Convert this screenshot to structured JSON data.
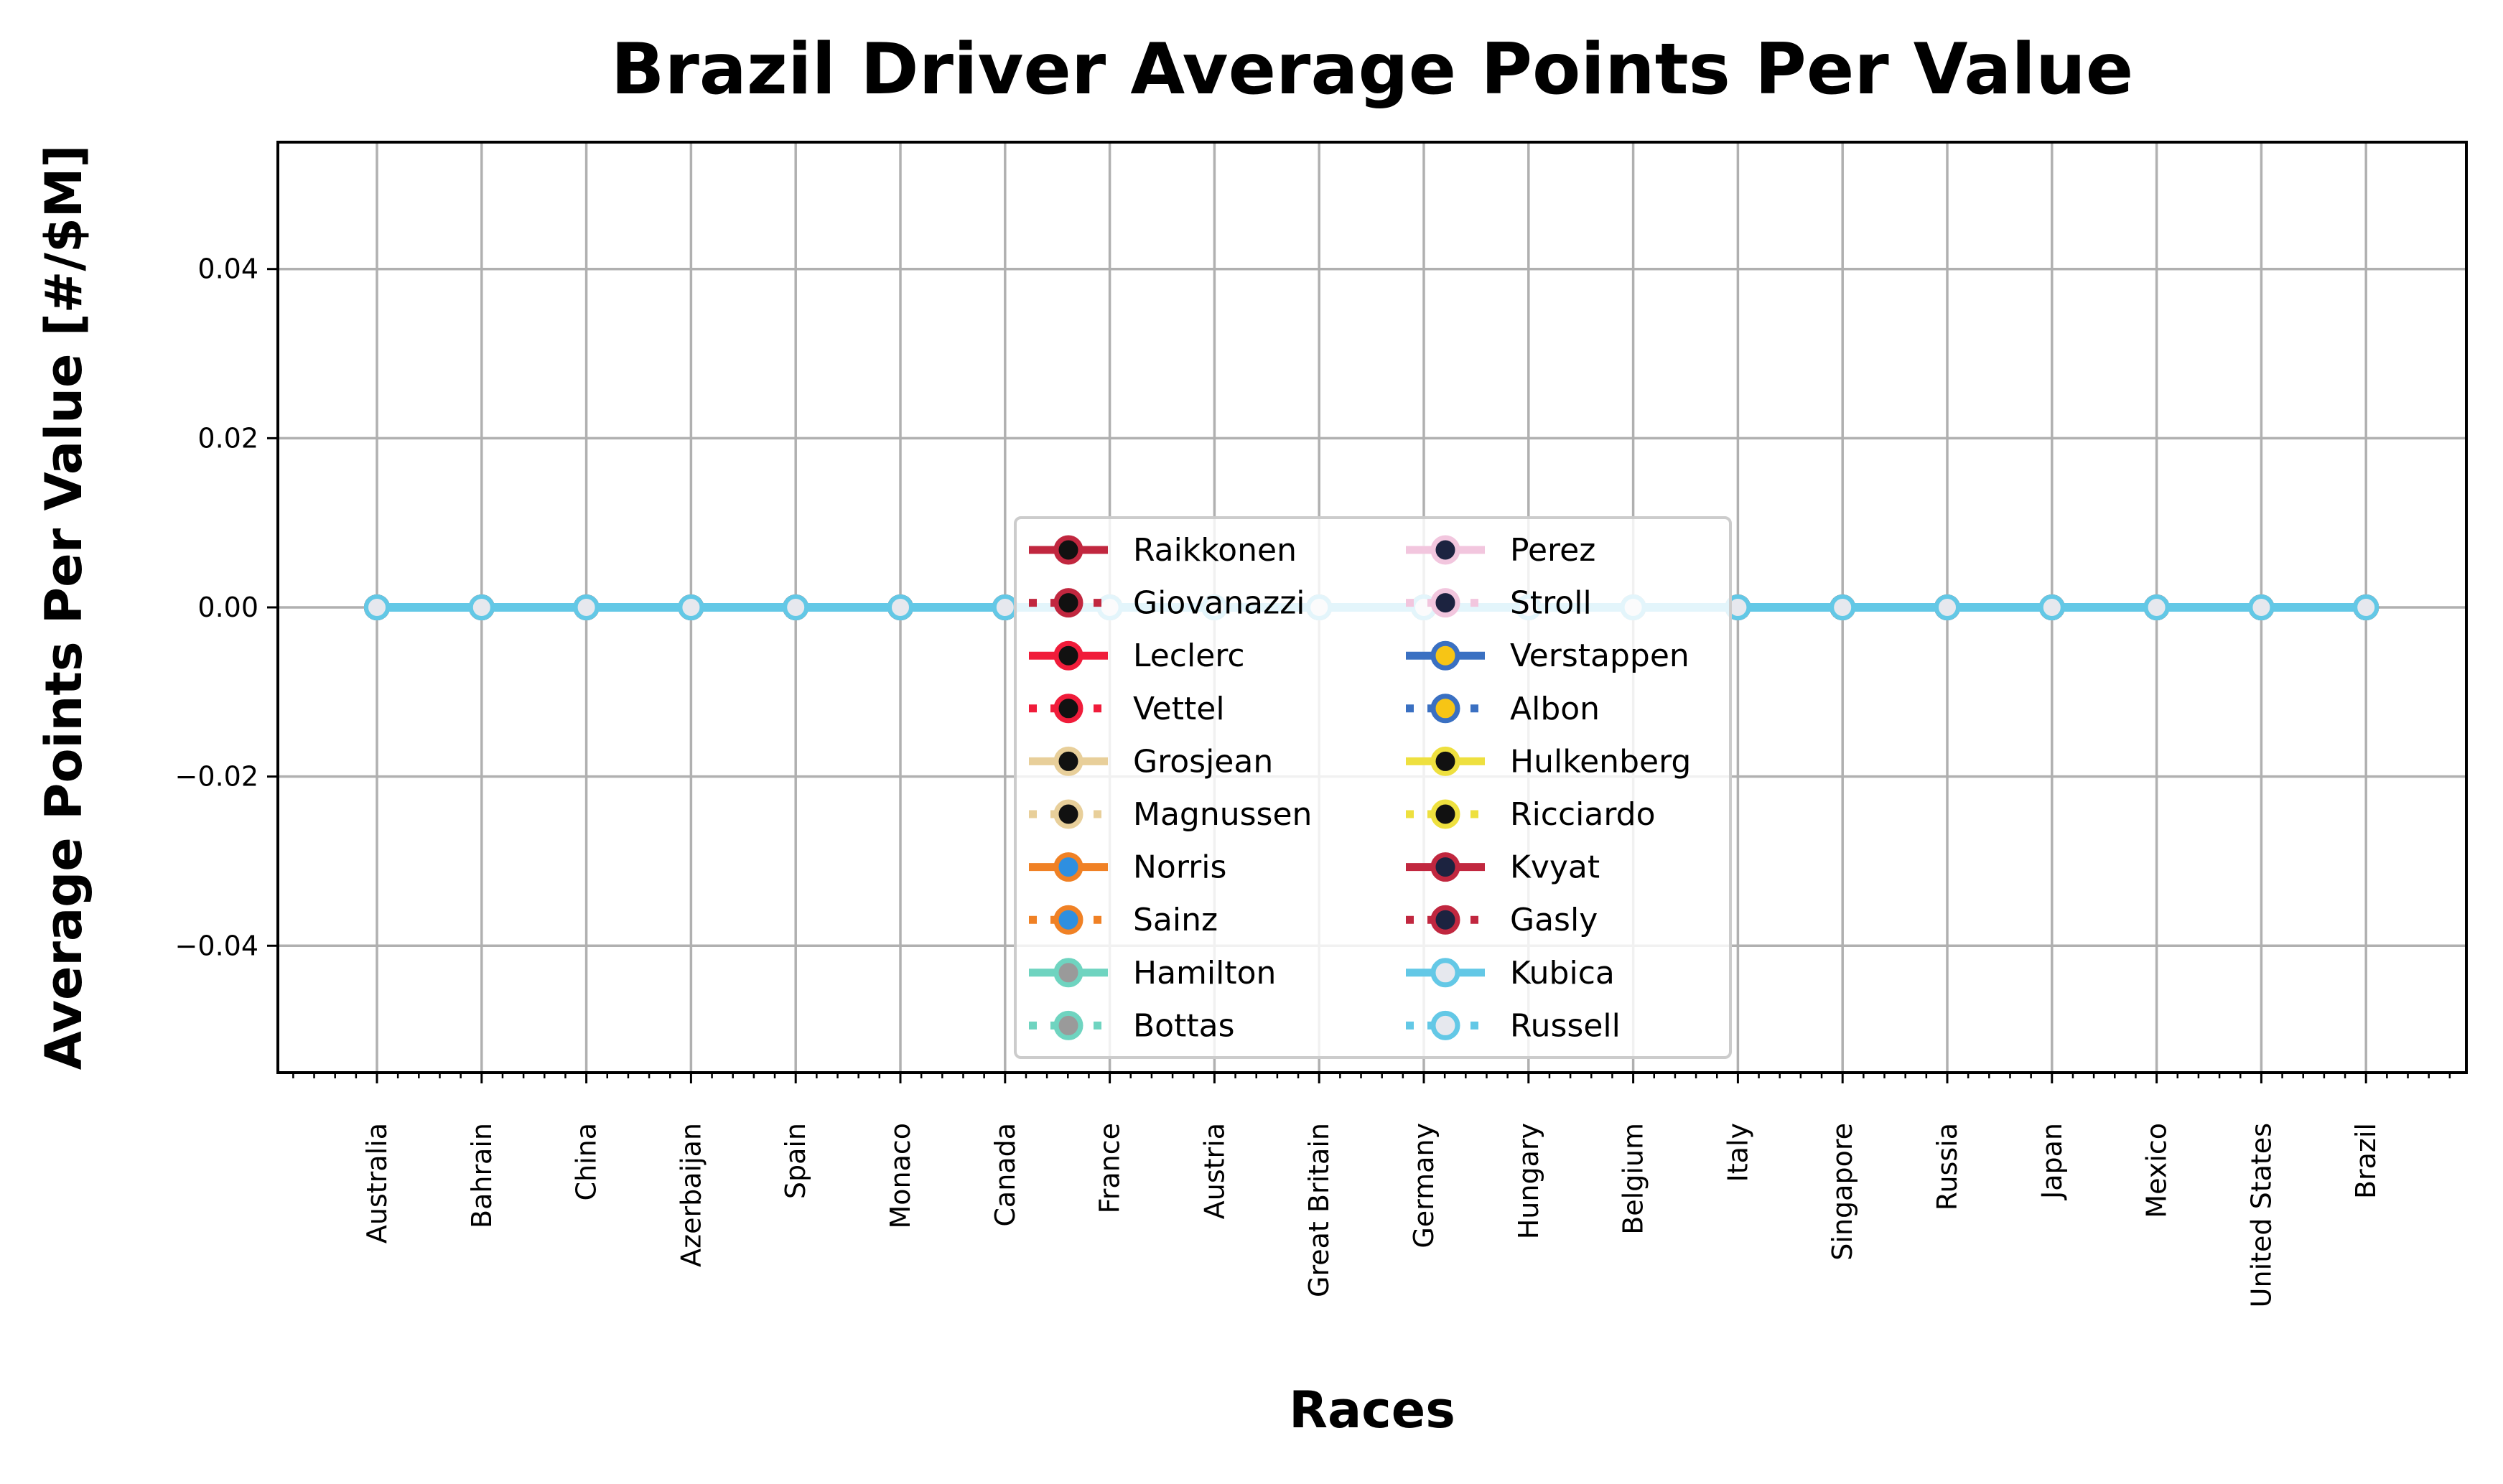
{
  "chart_data": {
    "type": "line",
    "title": "Brazil Driver Average Points Per Value",
    "xlabel": "Races",
    "ylabel": "Average Points Per Value [#/$M]",
    "categories": [
      "Australia",
      "Bahrain",
      "China",
      "Azerbaijan",
      "Spain",
      "Monaco",
      "Canada",
      "France",
      "Austria",
      "Great Britain",
      "Germany",
      "Hungary",
      "Belgium",
      "Italy",
      "Singapore",
      "Russia",
      "Japan",
      "Mexico",
      "United States",
      "Brazil"
    ],
    "ylim": [
      -0.055,
      0.055
    ],
    "yticks": [
      -0.04,
      -0.02,
      0.0,
      0.02,
      0.04
    ],
    "ytick_labels": [
      "−0.04",
      "−0.02",
      "0.00",
      "0.02",
      "0.04"
    ],
    "grid": true,
    "legend_placement": "center",
    "legend_columns": 2,
    "series": [
      {
        "name": "Raikkonen",
        "style": "solid",
        "line_color": "#c1273f",
        "face_color": "#111111",
        "values": [
          0,
          0,
          0,
          0,
          0,
          0,
          0,
          0,
          0,
          0,
          0,
          0,
          0,
          0,
          0,
          0,
          0,
          0,
          0,
          0
        ]
      },
      {
        "name": "Giovanazzi",
        "style": "dotted",
        "line_color": "#c1273f",
        "face_color": "#111111",
        "values": [
          0,
          0,
          0,
          0,
          0,
          0,
          0,
          0,
          0,
          0,
          0,
          0,
          0,
          0,
          0,
          0,
          0,
          0,
          0,
          0
        ]
      },
      {
        "name": "Leclerc",
        "style": "solid",
        "line_color": "#f01c3a",
        "face_color": "#111111",
        "values": [
          0,
          0,
          0,
          0,
          0,
          0,
          0,
          0,
          0,
          0,
          0,
          0,
          0,
          0,
          0,
          0,
          0,
          0,
          0,
          0
        ]
      },
      {
        "name": "Vettel",
        "style": "dotted",
        "line_color": "#f01c3a",
        "face_color": "#111111",
        "values": [
          0,
          0,
          0,
          0,
          0,
          0,
          0,
          0,
          0,
          0,
          0,
          0,
          0,
          0,
          0,
          0,
          0,
          0,
          0,
          0
        ]
      },
      {
        "name": "Grosjean",
        "style": "solid",
        "line_color": "#e8cf9a",
        "face_color": "#111111",
        "values": [
          0,
          0,
          0,
          0,
          0,
          0,
          0,
          0,
          0,
          0,
          0,
          0,
          0,
          0,
          0,
          0,
          0,
          0,
          0,
          0
        ]
      },
      {
        "name": "Magnussen",
        "style": "dotted",
        "line_color": "#e8cf9a",
        "face_color": "#111111",
        "values": [
          0,
          0,
          0,
          0,
          0,
          0,
          0,
          0,
          0,
          0,
          0,
          0,
          0,
          0,
          0,
          0,
          0,
          0,
          0,
          0
        ]
      },
      {
        "name": "Norris",
        "style": "solid",
        "line_color": "#f08125",
        "face_color": "#2e8fe0",
        "values": [
          0,
          0,
          0,
          0,
          0,
          0,
          0,
          0,
          0,
          0,
          0,
          0,
          0,
          0,
          0,
          0,
          0,
          0,
          0,
          0
        ]
      },
      {
        "name": "Sainz",
        "style": "dotted",
        "line_color": "#f08125",
        "face_color": "#2e8fe0",
        "values": [
          0,
          0,
          0,
          0,
          0,
          0,
          0,
          0,
          0,
          0,
          0,
          0,
          0,
          0,
          0,
          0,
          0,
          0,
          0,
          0
        ]
      },
      {
        "name": "Hamilton",
        "style": "solid",
        "line_color": "#6fd4c0",
        "face_color": "#9a9a9a",
        "values": [
          0,
          0,
          0,
          0,
          0,
          0,
          0,
          0,
          0,
          0,
          0,
          0,
          0,
          0,
          0,
          0,
          0,
          0,
          0,
          0
        ]
      },
      {
        "name": "Bottas",
        "style": "dotted",
        "line_color": "#6fd4c0",
        "face_color": "#9a9a9a",
        "values": [
          0,
          0,
          0,
          0,
          0,
          0,
          0,
          0,
          0,
          0,
          0,
          0,
          0,
          0,
          0,
          0,
          0,
          0,
          0,
          0
        ]
      },
      {
        "name": "Perez",
        "style": "solid",
        "line_color": "#f2c6de",
        "face_color": "#1c2340",
        "values": [
          0,
          0,
          0,
          0,
          0,
          0,
          0,
          0,
          0,
          0,
          0,
          0,
          0,
          0,
          0,
          0,
          0,
          0,
          0,
          0
        ]
      },
      {
        "name": "Stroll",
        "style": "dotted",
        "line_color": "#f2c6de",
        "face_color": "#1c2340",
        "values": [
          0,
          0,
          0,
          0,
          0,
          0,
          0,
          0,
          0,
          0,
          0,
          0,
          0,
          0,
          0,
          0,
          0,
          0,
          0,
          0
        ]
      },
      {
        "name": "Verstappen",
        "style": "solid",
        "line_color": "#3a70c2",
        "face_color": "#f7c515",
        "values": [
          0,
          0,
          0,
          0,
          0,
          0,
          0,
          0,
          0,
          0,
          0,
          0,
          0,
          0,
          0,
          0,
          0,
          0,
          0,
          0
        ]
      },
      {
        "name": "Albon",
        "style": "dotted",
        "line_color": "#3a70c2",
        "face_color": "#f7c515",
        "values": [
          0,
          0,
          0,
          0,
          0,
          0,
          0,
          0,
          0,
          0,
          0,
          0,
          0,
          0,
          0,
          0,
          0,
          0,
          0,
          0
        ]
      },
      {
        "name": "Hulkenberg",
        "style": "solid",
        "line_color": "#eee03f",
        "face_color": "#111111",
        "values": [
          0,
          0,
          0,
          0,
          0,
          0,
          0,
          0,
          0,
          0,
          0,
          0,
          0,
          0,
          0,
          0,
          0,
          0,
          0,
          0
        ]
      },
      {
        "name": "Ricciardo",
        "style": "dotted",
        "line_color": "#eee03f",
        "face_color": "#111111",
        "values": [
          0,
          0,
          0,
          0,
          0,
          0,
          0,
          0,
          0,
          0,
          0,
          0,
          0,
          0,
          0,
          0,
          0,
          0,
          0,
          0
        ]
      },
      {
        "name": "Kvyat",
        "style": "solid",
        "line_color": "#c1273f",
        "face_color": "#1c2340",
        "values": [
          0,
          0,
          0,
          0,
          0,
          0,
          0,
          0,
          0,
          0,
          0,
          0,
          0,
          0,
          0,
          0,
          0,
          0,
          0,
          0
        ]
      },
      {
        "name": "Gasly",
        "style": "dotted",
        "line_color": "#c1273f",
        "face_color": "#1c2340",
        "values": [
          0,
          0,
          0,
          0,
          0,
          0,
          0,
          0,
          0,
          0,
          0,
          0,
          0,
          0,
          0,
          0,
          0,
          0,
          0,
          0
        ]
      },
      {
        "name": "Kubica",
        "style": "solid",
        "line_color": "#63c8e6",
        "face_color": "#e6e8ee",
        "values": [
          0,
          0,
          0,
          0,
          0,
          0,
          0,
          0,
          0,
          0,
          0,
          0,
          0,
          0,
          0,
          0,
          0,
          0,
          0,
          0
        ]
      },
      {
        "name": "Russell",
        "style": "dotted",
        "line_color": "#63c8e6",
        "face_color": "#e6e8ee",
        "values": [
          0,
          0,
          0,
          0,
          0,
          0,
          0,
          0,
          0,
          0,
          0,
          0,
          0,
          0,
          0,
          0,
          0,
          0,
          0,
          0
        ]
      }
    ]
  }
}
